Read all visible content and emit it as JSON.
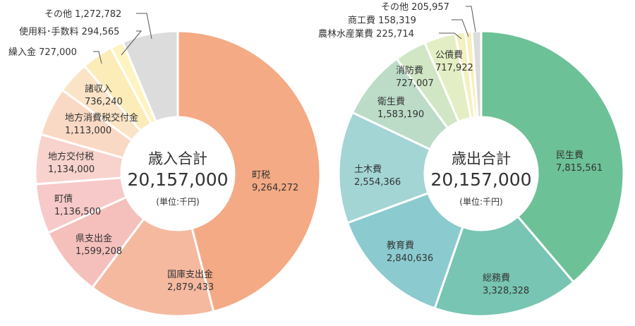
{
  "chart_data": [
    {
      "type": "pie",
      "title": "歳入合計",
      "total": "20,157,000",
      "unit": "(単位:千円)",
      "slices": [
        {
          "name": "町税",
          "value": 9264272,
          "value_label": "9,264,272",
          "color": "#f4aa84"
        },
        {
          "name": "国庫支出金",
          "value": 2879433,
          "value_label": "2,879,433",
          "color": "#f5b9a0"
        },
        {
          "name": "県支出金",
          "value": 1599208,
          "value_label": "1,599,208",
          "color": "#f5c0bc"
        },
        {
          "name": "町債",
          "value": 1136500,
          "value_label": "1,136,500",
          "color": "#f7c9c9"
        },
        {
          "name": "地方交付税",
          "value": 1134000,
          "value_label": "1,134,000",
          "color": "#f8d3cd"
        },
        {
          "name": "地方消費税交付金",
          "value": 1113000,
          "value_label": "1,113,000",
          "color": "#fad9c4"
        },
        {
          "name": "諸収入",
          "value": 736240,
          "value_label": "736,240",
          "color": "#fbe3c6"
        },
        {
          "name": "繰入金",
          "value": 727000,
          "value_label": "727,000",
          "color": "#fcecb8"
        },
        {
          "name": "使用料･手数料",
          "value": 294565,
          "value_label": "294,565",
          "color": "#fdf4c2"
        },
        {
          "name": "その他",
          "value": 1272782,
          "value_label": "1,272,782",
          "color": "#dcdcdc"
        }
      ]
    },
    {
      "type": "pie",
      "title": "歳出合計",
      "total": "20,157,000",
      "unit": "(単位:千円)",
      "slices": [
        {
          "name": "民生費",
          "value": 7815561,
          "value_label": "7,815,561",
          "color": "#6dc196"
        },
        {
          "name": "総務費",
          "value": 3328328,
          "value_label": "3,328,328",
          "color": "#77c5b2"
        },
        {
          "name": "教育費",
          "value": 2840636,
          "value_label": "2,840,636",
          "color": "#8bcbcf"
        },
        {
          "name": "土木費",
          "value": 2554366,
          "value_label": "2,554,366",
          "color": "#a3d5d5"
        },
        {
          "name": "衛生費",
          "value": 1583190,
          "value_label": "1,583,190",
          "color": "#bcdcc8"
        },
        {
          "name": "消防費",
          "value": 727007,
          "value_label": "727,007",
          "color": "#d0e6c5"
        },
        {
          "name": "公債費",
          "value": 717922,
          "value_label": "717,922",
          "color": "#e4eec4"
        },
        {
          "name": "農林水産業費",
          "value": 225714,
          "value_label": "225,714",
          "color": "#f2f1c0"
        },
        {
          "name": "商工費",
          "value": 158319,
          "value_label": "158,319",
          "color": "#f8f0b5"
        },
        {
          "name": "その他",
          "value": 205957,
          "value_label": "205,957",
          "color": "#dcdcdc"
        }
      ]
    }
  ]
}
